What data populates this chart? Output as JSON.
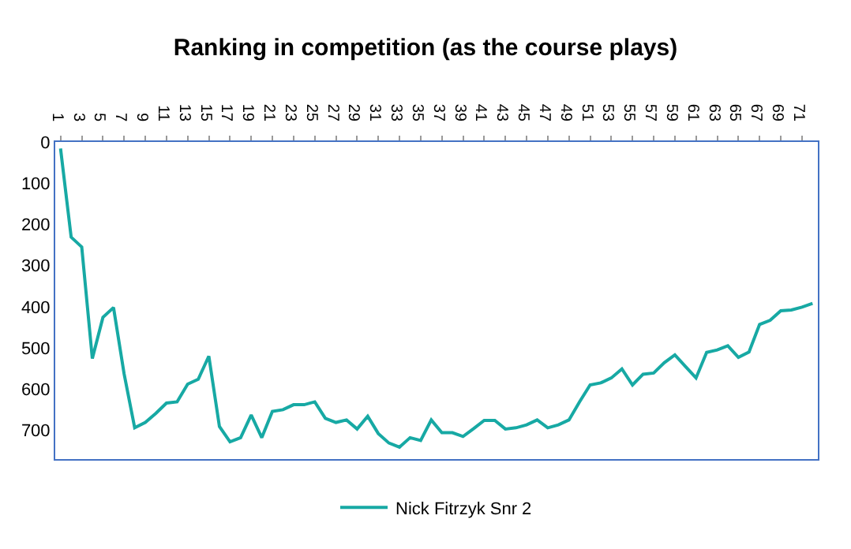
{
  "chart_data": {
    "type": "line",
    "title": "Ranking in competition (as the course plays)",
    "categories": [
      "1",
      null,
      "3",
      null,
      "5",
      null,
      "7",
      null,
      "9",
      null,
      "11",
      null,
      "13",
      null,
      "15",
      null,
      "17",
      null,
      "19",
      null,
      "21",
      null,
      "23",
      null,
      "25",
      null,
      "27",
      null,
      "29",
      null,
      "31",
      null,
      "33",
      null,
      "35",
      null,
      "37",
      null,
      "39",
      null,
      "41",
      null,
      "43",
      null,
      "45",
      null,
      "47",
      null,
      "49",
      null,
      "51",
      null,
      "53",
      null,
      "55",
      null,
      "57",
      null,
      "59",
      null,
      "61",
      null,
      "63",
      null,
      "65",
      null,
      "67",
      null,
      "69",
      null,
      "71",
      null
    ],
    "series": [
      {
        "name": "Nick Fitrzyk Snr 2",
        "color": "#17a9a4",
        "values": [
          16,
          231,
          255,
          526,
          426,
          402,
          563,
          694,
          681,
          659,
          634,
          631,
          588,
          576,
          520,
          691,
          728,
          718,
          663,
          718,
          654,
          650,
          638,
          638,
          631,
          671,
          681,
          675,
          697,
          666,
          708,
          731,
          741,
          718,
          725,
          675,
          706,
          706,
          715,
          696,
          676,
          676,
          697,
          694,
          687,
          675,
          694,
          687,
          675,
          631,
          590,
          585,
          573,
          551,
          590,
          564,
          561,
          536,
          517,
          545,
          573,
          511,
          505,
          495,
          523,
          510,
          443,
          433,
          410,
          408,
          401,
          392
        ]
      }
    ],
    "ylim": [
      770,
      0
    ],
    "yticks": [
      0,
      100,
      200,
      300,
      400,
      500,
      600,
      700
    ],
    "grid": false,
    "legend": "bottom",
    "marker": "none",
    "line_style": "solid"
  }
}
